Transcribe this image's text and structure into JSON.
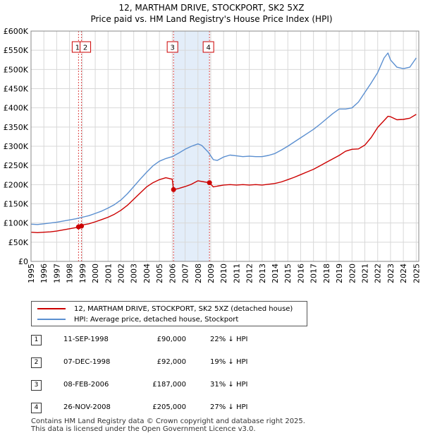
{
  "chart_data": {
    "type": "line",
    "title": "12, MARTHAM DRIVE, STOCKPORT, SK2 5XZ",
    "subtitle": "Price paid vs. HM Land Registry's House Price Index (HPI)",
    "xlabel": "",
    "ylabel": "",
    "xlim": [
      1995,
      2025.2
    ],
    "ylim": [
      0,
      600000
    ],
    "grid": true,
    "y_ticks": [
      0,
      50000,
      100000,
      150000,
      200000,
      250000,
      300000,
      350000,
      400000,
      450000,
      500000,
      550000,
      600000
    ],
    "y_tick_labels": [
      "£0",
      "£50K",
      "£100K",
      "£150K",
      "£200K",
      "£250K",
      "£300K",
      "£350K",
      "£400K",
      "£450K",
      "£500K",
      "£550K",
      "£600K"
    ],
    "x_ticks": [
      1995,
      1996,
      1997,
      1998,
      1999,
      2000,
      2001,
      2002,
      2003,
      2004,
      2005,
      2006,
      2007,
      2008,
      2009,
      2010,
      2011,
      2012,
      2013,
      2014,
      2015,
      2016,
      2017,
      2018,
      2019,
      2020,
      2021,
      2022,
      2023,
      2024,
      2025
    ],
    "shaded_range": [
      2006.1,
      2008.9
    ],
    "series": [
      {
        "name": "12, MARTHAM DRIVE, STOCKPORT, SK2 5XZ (detached house)",
        "color": "#cc0000",
        "x": [
          1995,
          1995.5,
          1996,
          1996.5,
          1997,
          1997.5,
          1998,
          1998.5,
          1998.7,
          1998.93,
          1999,
          1999.5,
          2000,
          2000.5,
          2001,
          2001.5,
          2002,
          2002.5,
          2003,
          2003.5,
          2004,
          2004.5,
          2005,
          2005.5,
          2006.0,
          2006.1,
          2006.5,
          2007,
          2007.5,
          2008,
          2008.5,
          2008.9,
          2009.2,
          2009.5,
          2010,
          2010.5,
          2011,
          2011.5,
          2012,
          2012.5,
          2013,
          2013.5,
          2014,
          2014.5,
          2015,
          2015.5,
          2016,
          2016.5,
          2017,
          2017.5,
          2018,
          2018.5,
          2019,
          2019.5,
          2020,
          2020.5,
          2021,
          2021.5,
          2022,
          2022.5,
          2022.8,
          2023,
          2023.5,
          2024,
          2024.5,
          2025
        ],
        "values": [
          76000,
          75000,
          76000,
          77000,
          79000,
          82000,
          85000,
          88000,
          90000,
          92000,
          95000,
          98000,
          103000,
          109000,
          115000,
          123000,
          133000,
          146000,
          162000,
          178000,
          194000,
          205000,
          213000,
          218000,
          214000,
          187000,
          190000,
          195000,
          201000,
          210000,
          207000,
          205000,
          194000,
          196000,
          199000,
          200000,
          199000,
          200000,
          199000,
          200000,
          199000,
          201000,
          203000,
          207000,
          213000,
          219000,
          226000,
          233000,
          240000,
          249000,
          258000,
          267000,
          276000,
          287000,
          292000,
          293000,
          303000,
          323000,
          349000,
          367000,
          378000,
          377000,
          369000,
          370000,
          373000,
          383000
        ]
      },
      {
        "name": "HPI: Average price, detached house, Stockport",
        "color": "#5b8fd0",
        "x": [
          1995,
          1995.5,
          1996,
          1996.5,
          1997,
          1997.5,
          1998,
          1998.5,
          1999,
          1999.5,
          2000,
          2000.5,
          2001,
          2001.5,
          2002,
          2002.5,
          2003,
          2003.5,
          2004,
          2004.5,
          2005,
          2005.5,
          2006,
          2006.5,
          2007,
          2007.5,
          2008,
          2008.3,
          2008.8,
          2009.2,
          2009.5,
          2010,
          2010.5,
          2011,
          2011.5,
          2012,
          2012.5,
          2013,
          2013.5,
          2014,
          2014.5,
          2015,
          2015.5,
          2016,
          2016.5,
          2017,
          2017.5,
          2018,
          2018.5,
          2019,
          2019.5,
          2020,
          2020.5,
          2021,
          2021.5,
          2022,
          2022.5,
          2022.8,
          2023,
          2023.5,
          2024,
          2024.5,
          2025
        ],
        "values": [
          97000,
          96000,
          98000,
          100000,
          102000,
          105000,
          108000,
          111000,
          115000,
          119000,
          125000,
          131000,
          139000,
          148000,
          160000,
          176000,
          195000,
          214000,
          232000,
          249000,
          261000,
          268000,
          273000,
          282000,
          292000,
          300000,
          306000,
          302000,
          285000,
          265000,
          263000,
          272000,
          277000,
          275000,
          273000,
          274000,
          273000,
          273000,
          276000,
          281000,
          290000,
          300000,
          311000,
          322000,
          333000,
          344000,
          357000,
          371000,
          385000,
          397000,
          397000,
          400000,
          415000,
          440000,
          465000,
          492000,
          530000,
          543000,
          525000,
          506000,
          502000,
          506000,
          530000
        ]
      }
    ],
    "transactions": [
      {
        "label": "1",
        "x": 1998.7,
        "value": 90000
      },
      {
        "label": "2",
        "x": 1998.93,
        "value": 92000
      },
      {
        "label": "3",
        "x": 2006.1,
        "value": 187000
      },
      {
        "label": "4",
        "x": 2008.9,
        "value": 205000
      }
    ]
  },
  "legend": {
    "property": "12, MARTHAM DRIVE, STOCKPORT, SK2 5XZ (detached house)",
    "hpi": "HPI: Average price, detached house, Stockport"
  },
  "table": [
    {
      "num": "1",
      "date": "11-SEP-1998",
      "price": "£90,000",
      "hpi": "22% ↓ HPI"
    },
    {
      "num": "2",
      "date": "07-DEC-1998",
      "price": "£92,000",
      "hpi": "19% ↓ HPI"
    },
    {
      "num": "3",
      "date": "08-FEB-2006",
      "price": "£187,000",
      "hpi": "31% ↓ HPI"
    },
    {
      "num": "4",
      "date": "26-NOV-2008",
      "price": "£205,000",
      "hpi": "27% ↓ HPI"
    }
  ],
  "footer": {
    "line1": "Contains HM Land Registry data © Crown copyright and database right 2025.",
    "line2": "This data is licensed under the Open Government Licence v3.0."
  }
}
